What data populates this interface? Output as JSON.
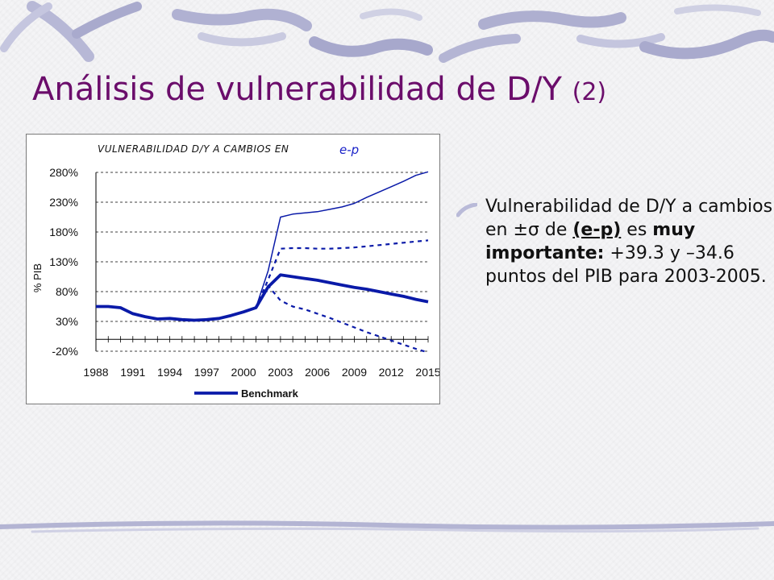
{
  "slide": {
    "title_main": "Análisis de vulnerabilidad de D/Y",
    "title_suffix": "(2)"
  },
  "bullet": {
    "part1": "Vulnerabilidad de D/Y a cambios en ",
    "symbol": "±σ",
    "part2": " de ",
    "underlined": "(e-p)",
    "part3": " es ",
    "bold": "muy importante:",
    "part4": " +39.3 y –34.6 puntos del PIB para 2003-2005."
  },
  "chart_data": {
    "type": "line",
    "title": "VULNERABILIDAD D/Y A CAMBIOS EN",
    "title_variable": "e-p",
    "ylabel": "% PIB",
    "xlabel": "",
    "ylim": [
      -20,
      280
    ],
    "yticks": [
      -20,
      30,
      80,
      130,
      180,
      230,
      280
    ],
    "ytick_labels": [
      "-20%",
      "30%",
      "80%",
      "130%",
      "180%",
      "230%",
      "280%"
    ],
    "xlim": [
      1988,
      2015
    ],
    "xtick_labels": [
      "1988",
      "1991",
      "1994",
      "1997",
      "2000",
      "2003",
      "2006",
      "2009",
      "2012",
      "2015"
    ],
    "grid": "horizontal dashed",
    "legend_position": "bottom",
    "colors": {
      "series": "#0a1aa8",
      "grid": "#000000"
    },
    "series": [
      {
        "name": "Benchmark",
        "style": "solid-thick",
        "x": [
          1988,
          1989,
          1990,
          1991,
          1992,
          1993,
          1994,
          1995,
          1996,
          1997,
          1998,
          1999,
          2000,
          2001,
          2002,
          2003,
          2004,
          2005,
          2006,
          2007,
          2008,
          2009,
          2010,
          2011,
          2012,
          2013,
          2014,
          2015
        ],
        "values": [
          55,
          55,
          53,
          43,
          38,
          34,
          35,
          33,
          32,
          33,
          35,
          40,
          46,
          53,
          88,
          108,
          105,
          102,
          99,
          95,
          91,
          87,
          84,
          80,
          76,
          72,
          67,
          63
        ]
      },
      {
        "style": "solid-thin",
        "x": [
          2001,
          2002,
          2003,
          2004,
          2005,
          2006,
          2007,
          2008,
          2009,
          2010,
          2011,
          2012,
          2013,
          2014,
          2015
        ],
        "values": [
          53,
          115,
          205,
          210,
          212,
          214,
          218,
          222,
          228,
          238,
          247,
          256,
          265,
          275,
          281
        ]
      },
      {
        "style": "dashed",
        "x": [
          2001,
          2002,
          2003,
          2004,
          2005,
          2006,
          2007,
          2008,
          2009,
          2010,
          2011,
          2012,
          2013,
          2014,
          2015
        ],
        "values": [
          53,
          100,
          152,
          153,
          153,
          152,
          152,
          153,
          154,
          156,
          158,
          160,
          162,
          164,
          166
        ]
      },
      {
        "style": "dashed",
        "x": [
          2001,
          2002,
          2003,
          2004,
          2005,
          2006,
          2007,
          2008,
          2009,
          2010,
          2011,
          2012,
          2013,
          2014,
          2015
        ],
        "values": [
          53,
          90,
          65,
          55,
          50,
          43,
          36,
          28,
          20,
          12,
          5,
          -2,
          -9,
          -16,
          -22
        ]
      }
    ]
  }
}
